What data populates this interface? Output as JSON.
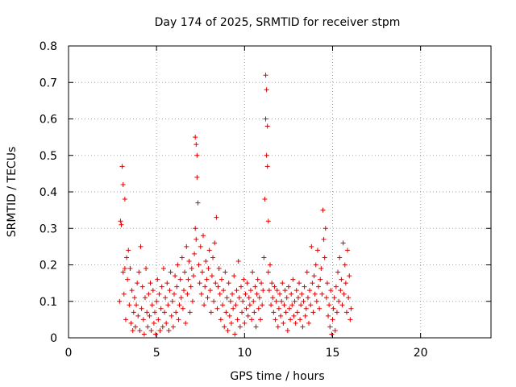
{
  "chart_data": {
    "type": "scatter",
    "title": "Day 174 of 2025, SRMTID for receiver stpm",
    "xlabel": "GPS time / hours",
    "ylabel": "SRMTID / TECUs",
    "xlim": [
      0,
      24
    ],
    "ylim": [
      0,
      0.8
    ],
    "xticks": [
      0,
      5,
      10,
      15,
      20
    ],
    "yticks": [
      0,
      0.1,
      0.2,
      0.3,
      0.4,
      0.5,
      0.6,
      0.7,
      0.8
    ],
    "grid": true,
    "marker": "plus",
    "color": "#e00000",
    "series": [
      {
        "x": [
          2.9,
          2.95,
          3.0,
          3.05,
          3.1,
          3.1,
          3.15,
          3.2,
          3.2,
          3.25,
          3.3,
          3.35,
          3.4,
          3.45,
          3.5,
          3.55,
          3.6,
          3.65,
          3.7,
          3.75,
          3.8,
          3.85,
          3.9,
          3.95,
          4.0,
          4.05,
          4.1,
          4.15,
          4.2,
          4.25,
          4.3,
          4.35,
          4.4,
          4.45,
          4.5,
          4.55,
          4.6,
          4.65,
          4.7,
          4.75,
          4.8,
          4.85,
          4.9,
          4.95,
          5.0,
          5.05,
          5.1,
          5.15,
          5.2,
          5.25,
          5.3,
          5.35,
          5.4,
          5.45,
          5.5,
          5.55,
          5.6,
          5.65,
          5.7,
          5.75,
          5.8,
          5.85,
          5.9,
          5.95,
          6.0,
          6.05,
          6.1,
          6.15,
          6.2,
          6.25,
          6.3,
          6.35,
          6.4,
          6.45,
          6.5,
          6.55,
          6.6,
          6.65,
          6.7,
          6.75,
          6.8,
          6.85,
          6.9,
          6.95,
          7.0,
          7.05,
          7.1,
          7.15,
          7.2,
          7.2,
          7.25,
          7.25,
          7.3,
          7.3,
          7.35,
          7.4,
          7.45,
          7.5,
          7.55,
          7.6,
          7.65,
          7.7,
          7.75,
          7.8,
          7.85,
          7.9,
          7.95,
          8.0,
          8.05,
          8.1,
          8.15,
          8.2,
          8.25,
          8.3,
          8.35,
          8.4,
          8.45,
          8.5,
          8.55,
          8.6,
          8.65,
          8.7,
          8.75,
          8.8,
          8.85,
          8.9,
          8.95,
          9.0,
          9.05,
          9.1,
          9.15,
          9.2,
          9.25,
          9.3,
          9.35,
          9.4,
          9.45,
          9.5,
          9.55,
          9.6,
          9.65,
          9.7,
          9.75,
          9.8,
          9.85,
          9.9,
          9.95,
          10.0,
          10.05,
          10.1,
          10.15,
          10.2,
          10.25,
          10.3,
          10.35,
          10.4,
          10.45,
          10.5,
          10.55,
          10.6,
          10.65,
          10.7,
          10.75,
          10.8,
          10.85,
          10.9,
          10.95,
          11.0,
          11.05,
          11.1,
          11.15,
          11.2,
          11.2,
          11.25,
          11.25,
          11.3,
          11.3,
          11.35,
          11.35,
          11.4,
          11.45,
          11.5,
          11.55,
          11.6,
          11.65,
          11.7,
          11.75,
          11.8,
          11.85,
          11.9,
          11.95,
          12.0,
          12.05,
          12.1,
          12.15,
          12.2,
          12.25,
          12.3,
          12.35,
          12.4,
          12.45,
          12.5,
          12.55,
          12.6,
          12.65,
          12.7,
          12.75,
          12.8,
          12.85,
          12.9,
          12.95,
          13.0,
          13.05,
          13.1,
          13.15,
          13.2,
          13.25,
          13.3,
          13.35,
          13.4,
          13.45,
          13.5,
          13.55,
          13.6,
          13.65,
          13.7,
          13.75,
          13.8,
          13.85,
          13.9,
          13.95,
          14.0,
          14.05,
          14.1,
          14.15,
          14.2,
          14.25,
          14.3,
          14.35,
          14.4,
          14.45,
          14.5,
          14.55,
          14.6,
          14.65,
          14.7,
          14.75,
          14.8,
          14.85,
          14.9,
          14.95,
          15.0,
          15.05,
          15.1,
          15.15,
          15.2,
          15.25,
          15.3,
          15.35,
          15.4,
          15.45,
          15.5,
          15.55,
          15.6,
          15.65,
          15.7,
          15.75,
          15.8,
          15.85,
          15.9,
          15.95,
          16.0,
          16.05
        ],
        "y": [
          0.1,
          0.32,
          0.31,
          0.47,
          0.42,
          0.18,
          0.12,
          0.38,
          0.19,
          0.05,
          0.22,
          0.16,
          0.24,
          0.09,
          0.19,
          0.04,
          0.13,
          0.02,
          0.07,
          0.11,
          0.03,
          0.09,
          0.15,
          0.06,
          0.18,
          0.02,
          0.25,
          0.08,
          0.14,
          0.05,
          0.01,
          0.11,
          0.19,
          0.07,
          0.03,
          0.12,
          0.06,
          0.15,
          0.02,
          0.09,
          0.13,
          0.04,
          0.07,
          0.01,
          0.1,
          0.16,
          0.05,
          0.12,
          0.02,
          0.08,
          0.14,
          0.03,
          0.19,
          0.07,
          0.11,
          0.04,
          0.15,
          0.09,
          0.02,
          0.13,
          0.18,
          0.06,
          0.1,
          0.03,
          0.12,
          0.17,
          0.07,
          0.14,
          0.2,
          0.05,
          0.09,
          0.16,
          0.11,
          0.22,
          0.08,
          0.13,
          0.18,
          0.04,
          0.25,
          0.12,
          0.16,
          0.21,
          0.07,
          0.14,
          0.19,
          0.1,
          0.17,
          0.23,
          0.3,
          0.55,
          0.27,
          0.53,
          0.44,
          0.5,
          0.37,
          0.2,
          0.15,
          0.25,
          0.12,
          0.18,
          0.28,
          0.09,
          0.14,
          0.21,
          0.16,
          0.11,
          0.19,
          0.24,
          0.13,
          0.07,
          0.17,
          0.22,
          0.1,
          0.26,
          0.15,
          0.33,
          0.08,
          0.14,
          0.19,
          0.12,
          0.05,
          0.16,
          0.09,
          0.13,
          0.03,
          0.18,
          0.07,
          0.11,
          0.02,
          0.15,
          0.06,
          0.1,
          0.04,
          0.12,
          0.08,
          0.17,
          0.01,
          0.09,
          0.13,
          0.05,
          0.21,
          0.11,
          0.03,
          0.14,
          0.07,
          0.1,
          0.16,
          0.04,
          0.12,
          0.08,
          0.15,
          0.06,
          0.11,
          0.09,
          0.13,
          0.05,
          0.18,
          0.1,
          0.07,
          0.14,
          0.03,
          0.12,
          0.16,
          0.08,
          0.11,
          0.05,
          0.15,
          0.09,
          0.13,
          0.22,
          0.38,
          0.72,
          0.6,
          0.68,
          0.5,
          0.58,
          0.47,
          0.32,
          0.18,
          0.13,
          0.2,
          0.09,
          0.15,
          0.11,
          0.07,
          0.14,
          0.05,
          0.1,
          0.13,
          0.03,
          0.08,
          0.12,
          0.06,
          0.1,
          0.15,
          0.04,
          0.09,
          0.13,
          0.07,
          0.11,
          0.02,
          0.14,
          0.08,
          0.05,
          0.12,
          0.09,
          0.16,
          0.06,
          0.1,
          0.04,
          0.13,
          0.07,
          0.11,
          0.15,
          0.05,
          0.09,
          0.12,
          0.03,
          0.1,
          0.14,
          0.06,
          0.08,
          0.18,
          0.11,
          0.04,
          0.13,
          0.09,
          0.25,
          0.15,
          0.07,
          0.17,
          0.12,
          0.2,
          0.1,
          0.24,
          0.14,
          0.08,
          0.16,
          0.19,
          0.12,
          0.35,
          0.27,
          0.22,
          0.3,
          0.11,
          0.15,
          0.06,
          0.09,
          0.03,
          0.13,
          0.01,
          0.05,
          0.08,
          0.11,
          0.02,
          0.14,
          0.07,
          0.18,
          0.1,
          0.22,
          0.13,
          0.16,
          0.09,
          0.26,
          0.12,
          0.2,
          0.15,
          0.07,
          0.24,
          0.11,
          0.17,
          0.05,
          0.08
        ]
      }
    ]
  }
}
